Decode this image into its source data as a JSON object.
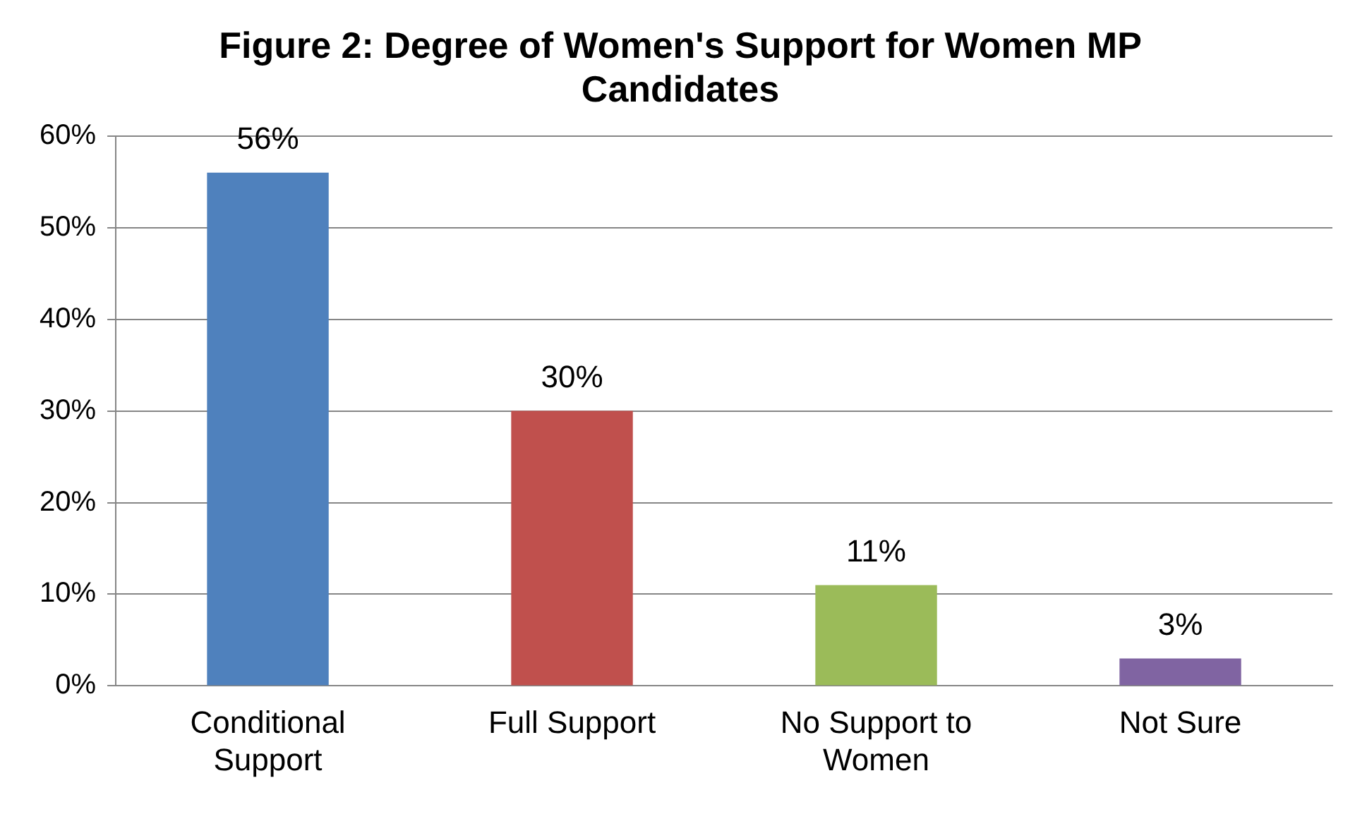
{
  "chart_data": {
    "type": "bar",
    "title": "Figure 2: Degree of Women's Support for Women MP Candidates",
    "categories": [
      "Conditional Support",
      "Full Support",
      "No Support to Women",
      "Not Sure"
    ],
    "values": [
      56,
      30,
      11,
      3
    ],
    "colors": [
      "#4f81bd",
      "#c0504d",
      "#9bbb59",
      "#8064a2"
    ],
    "value_labels": [
      "56%",
      "30%",
      "11%",
      "3%"
    ],
    "ylim": [
      0,
      60
    ],
    "yticks": [
      {
        "value": 0,
        "label": "0%"
      },
      {
        "value": 10,
        "label": "10%"
      },
      {
        "value": 20,
        "label": "20%"
      },
      {
        "value": 30,
        "label": "30%"
      },
      {
        "value": 40,
        "label": "40%"
      },
      {
        "value": 50,
        "label": "50%"
      },
      {
        "value": 60,
        "label": "60%"
      }
    ],
    "grid": "y",
    "legend": false
  }
}
